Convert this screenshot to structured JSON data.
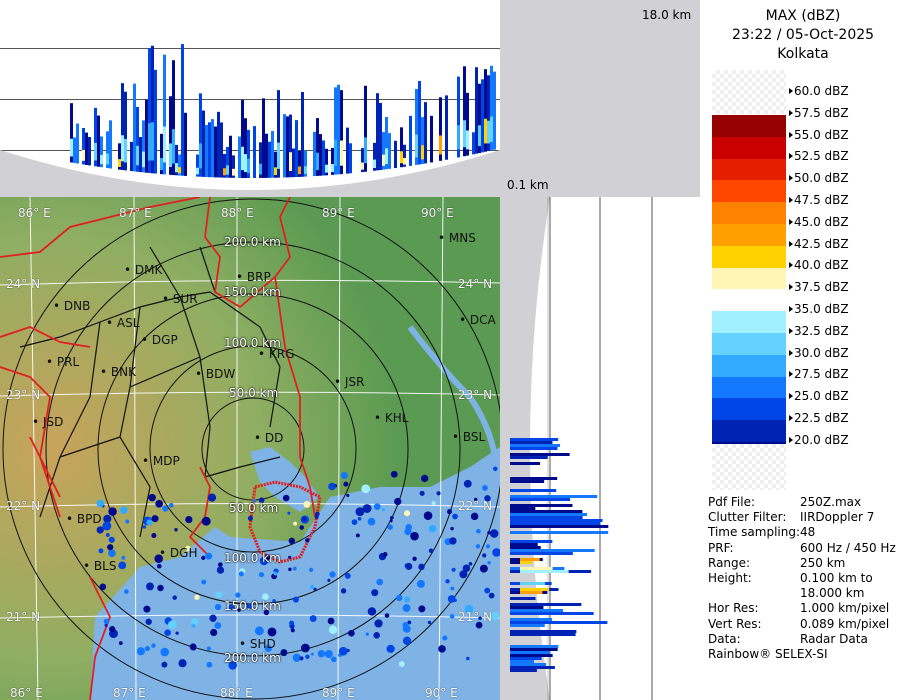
{
  "header": {
    "product": "MAX (dBZ)",
    "datetime": "23:22 / 05-Oct-2025",
    "station": "Kolkata"
  },
  "scale": {
    "top_km": "18.0 km",
    "bottom_km": "0.1 km"
  },
  "legend": {
    "entries": [
      {
        "label": "60.0 dBZ",
        "color": "#ffffff"
      },
      {
        "label": "57.5 dBZ",
        "color": "#960000"
      },
      {
        "label": "55.0 dBZ",
        "color": "#c80000"
      },
      {
        "label": "52.5 dBZ",
        "color": "#e61e00"
      },
      {
        "label": "50.0 dBZ",
        "color": "#ff4600"
      },
      {
        "label": "47.5 dBZ",
        "color": "#ff8200"
      },
      {
        "label": "45.0 dBZ",
        "color": "#ffa000"
      },
      {
        "label": "42.5 dBZ",
        "color": "#ffd200"
      },
      {
        "label": "40.0 dBZ",
        "color": "#fff5b4"
      },
      {
        "label": "37.5 dBZ",
        "color": "#ffffff"
      },
      {
        "label": "35.0 dBZ",
        "color": "#a0f0ff"
      },
      {
        "label": "32.5 dBZ",
        "color": "#64d2ff"
      },
      {
        "label": "30.0 dBZ",
        "color": "#32aaff"
      },
      {
        "label": "27.5 dBZ",
        "color": "#1478ff"
      },
      {
        "label": "25.0 dBZ",
        "color": "#0046e6"
      },
      {
        "label": "22.5 dBZ",
        "color": "#0023b4"
      },
      {
        "label": "20.0 dBZ",
        "color": "#000a8c"
      }
    ]
  },
  "info": [
    {
      "key": "Pdf File:",
      "value": "250Z.max"
    },
    {
      "key": "Clutter Filter:",
      "value": "IIRDoppler 7"
    },
    {
      "key": "Time sampling:",
      "value": "48"
    },
    {
      "key": "PRF:",
      "value": "600 Hz / 450 Hz"
    },
    {
      "key": "Range:",
      "value": "250 km"
    },
    {
      "key": "Height:",
      "value": "0.100 km to"
    },
    {
      "key": "",
      "value": "18.000 km"
    },
    {
      "key": "Hor Res:",
      "value": "1.000 km/pixel"
    },
    {
      "key": "Vert Res:",
      "value": "0.089 km/pixel"
    },
    {
      "key": "Data:",
      "value": "Radar Data"
    }
  ],
  "footer": "Rainbow® SELEX-SI",
  "map": {
    "longitudes": [
      "86° E",
      "87° E",
      "88° E",
      "89° E",
      "90° E"
    ],
    "latitudes": [
      "24° N",
      "23° N",
      "22° N",
      "21° N"
    ],
    "rings": [
      "200.0 km",
      "150.0 km",
      "100.0 km",
      "50.0 km",
      "50.0 km",
      "100.0 km",
      "150.0 km",
      "200.0 km"
    ],
    "cities": [
      "MNS",
      "DMK",
      "BRP",
      "DNB",
      "SUR",
      "ASL",
      "DCA",
      "DGP",
      "KRG",
      "PRL",
      "BNK",
      "BDW",
      "JSR",
      "KHL",
      "JSD",
      "DD",
      "BSL",
      "MDP",
      "BPD",
      "DGH",
      "BLS",
      "SHD"
    ],
    "colors": {
      "land": "#5a9a52",
      "hills": "#c9a35b",
      "sea": "#7fb3e6",
      "border": "#e02020",
      "district": "#111111"
    }
  }
}
